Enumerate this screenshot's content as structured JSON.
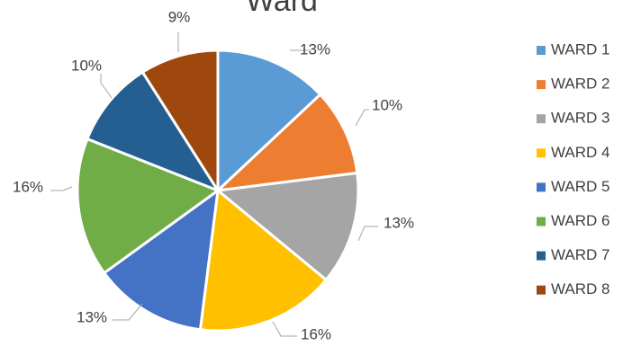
{
  "chart_data": {
    "type": "pie",
    "title": "Ward",
    "categories": [
      "WARD 1",
      "WARD 2",
      "WARD 3",
      "WARD 4",
      "WARD 5",
      "WARD 6",
      "WARD 7",
      "WARD 8"
    ],
    "values": [
      13,
      10,
      13,
      16,
      13,
      16,
      10,
      9
    ],
    "labels": [
      "13%",
      "10%",
      "13%",
      "16%",
      "13%",
      "16%",
      "10%",
      "9%"
    ],
    "colors": [
      "#5b9bd5",
      "#ed7d31",
      "#a5a5a5",
      "#ffc000",
      "#4472c4",
      "#70ad47",
      "#255e91",
      "#9e480e"
    ],
    "legend": {
      "position": "right",
      "entries": [
        "WARD 1",
        "WARD 2",
        "WARD 3",
        "WARD 4",
        "WARD 5",
        "WARD 6",
        "WARD 7",
        "WARD 8"
      ]
    },
    "start_angle_deg": 0,
    "direction": "clockwise",
    "slice_border_color": "#ffffff",
    "leader_line_color": "#a6a6a6",
    "text_color": "#404040"
  }
}
